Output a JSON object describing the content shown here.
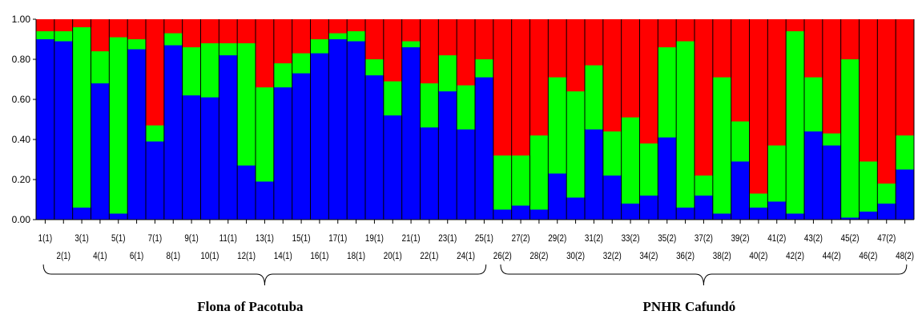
{
  "chart_data": {
    "type": "bar",
    "stacked": true,
    "ylim": [
      0,
      1
    ],
    "yticks": [
      "0.00",
      "0.20",
      "0.40",
      "0.60",
      "0.80",
      "1.00"
    ],
    "categories": [
      "1(1)",
      "2(1)",
      "3(1)",
      "4(1)",
      "5(1)",
      "6(1)",
      "7(1)",
      "8(1)",
      "9(1)",
      "10(1)",
      "11(1)",
      "12(1)",
      "13(1)",
      "14(1)",
      "15(1)",
      "16(1)",
      "17(1)",
      "18(1)",
      "19(1)",
      "20(1)",
      "21(1)",
      "22(1)",
      "23(1)",
      "24(1)",
      "25(1)",
      "26(2)",
      "27(2)",
      "28(2)",
      "29(2)",
      "30(2)",
      "31(2)",
      "32(2)",
      "33(2)",
      "34(2)",
      "35(2)",
      "36(2)",
      "37(2)",
      "38(2)",
      "39(2)",
      "40(2)",
      "41(2)",
      "42(2)",
      "43(2)",
      "44(2)",
      "45(2)",
      "46(2)",
      "47(2)",
      "48(2)"
    ],
    "series": [
      {
        "color": "#0000ff",
        "values": [
          0.9,
          0.89,
          0.06,
          0.68,
          0.03,
          0.85,
          0.39,
          0.87,
          0.62,
          0.61,
          0.82,
          0.27,
          0.19,
          0.66,
          0.73,
          0.83,
          0.9,
          0.89,
          0.72,
          0.52,
          0.86,
          0.46,
          0.64,
          0.45,
          0.71,
          0.05,
          0.07,
          0.05,
          0.23,
          0.11,
          0.45,
          0.22,
          0.08,
          0.12,
          0.41,
          0.06,
          0.12,
          0.03,
          0.29,
          0.06,
          0.09,
          0.03,
          0.44,
          0.37,
          0.01,
          0.04,
          0.08,
          0.25
        ]
      },
      {
        "color": "#00ff00",
        "values": [
          0.04,
          0.05,
          0.9,
          0.16,
          0.88,
          0.05,
          0.08,
          0.06,
          0.24,
          0.27,
          0.06,
          0.61,
          0.47,
          0.12,
          0.1,
          0.07,
          0.03,
          0.05,
          0.08,
          0.17,
          0.03,
          0.22,
          0.18,
          0.22,
          0.09,
          0.27,
          0.25,
          0.37,
          0.48,
          0.53,
          0.32,
          0.22,
          0.43,
          0.26,
          0.45,
          0.83,
          0.1,
          0.68,
          0.2,
          0.07,
          0.28,
          0.91,
          0.27,
          0.06,
          0.79,
          0.25,
          0.1,
          0.17
        ]
      },
      {
        "color": "#ff0000",
        "values": [
          0.06,
          0.06,
          0.04,
          0.16,
          0.09,
          0.1,
          0.53,
          0.07,
          0.14,
          0.12,
          0.12,
          0.12,
          0.34,
          0.22,
          0.17,
          0.1,
          0.07,
          0.06,
          0.2,
          0.31,
          0.11,
          0.32,
          0.18,
          0.33,
          0.2,
          0.68,
          0.68,
          0.58,
          0.29,
          0.36,
          0.23,
          0.56,
          0.49,
          0.62,
          0.14,
          0.11,
          0.78,
          0.29,
          0.51,
          0.87,
          0.63,
          0.06,
          0.29,
          0.57,
          0.2,
          0.71,
          0.82,
          0.58
        ]
      }
    ],
    "groups": [
      {
        "label": "Flona of Pacotuba",
        "from": 0,
        "to": 24
      },
      {
        "label": "PNHR Cafundó",
        "from": 25,
        "to": 47
      }
    ]
  }
}
